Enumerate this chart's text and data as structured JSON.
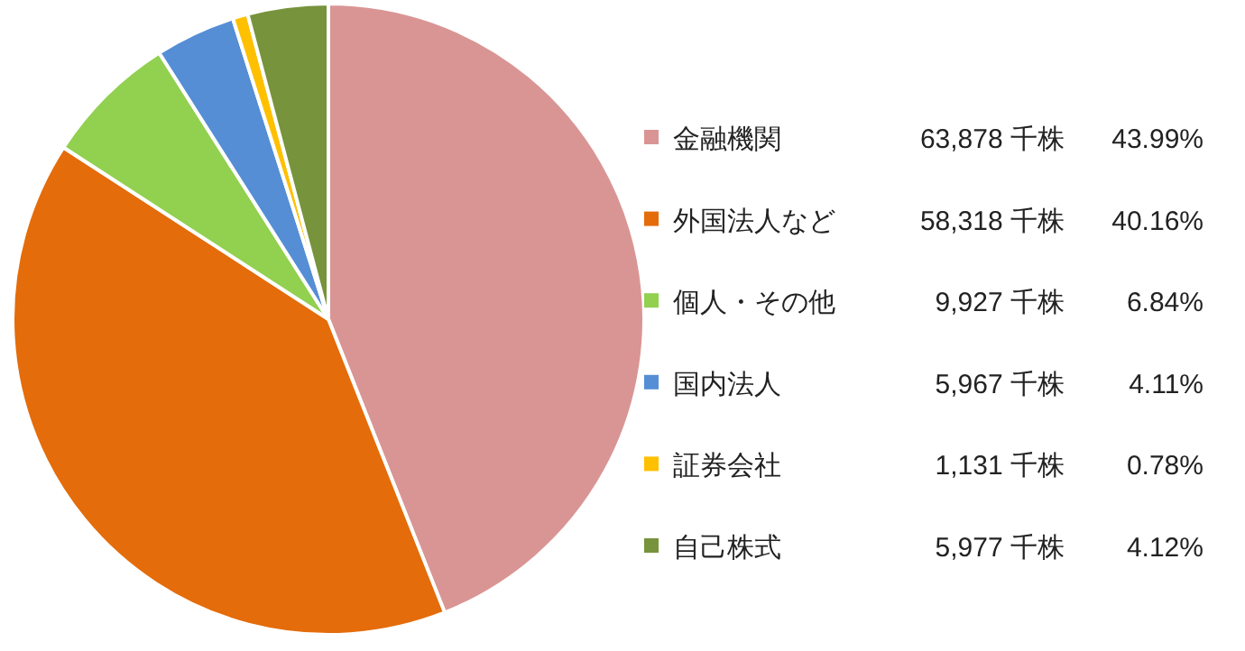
{
  "chart_data": {
    "type": "pie",
    "categories": [
      "金融機関",
      "外国法人など",
      "個人・その他",
      "国内法人",
      "証券会社",
      "自己株式"
    ],
    "values": [
      63878,
      58318,
      9927,
      5967,
      1131,
      5977
    ],
    "colors": [
      "#d99594",
      "#e46c0a",
      "#92d050",
      "#558ed5",
      "#ffc000",
      "#77933c"
    ],
    "value_labels": [
      "63,878 千株",
      "58,318 千株",
      "9,927 千株",
      "5,967 千株",
      "1,131 千株",
      "5,977 千株"
    ],
    "annotations": [
      "43.99%",
      "40.16%",
      "6.84%",
      "4.11%",
      "0.78%",
      "4.12%"
    ],
    "legend": "right"
  }
}
